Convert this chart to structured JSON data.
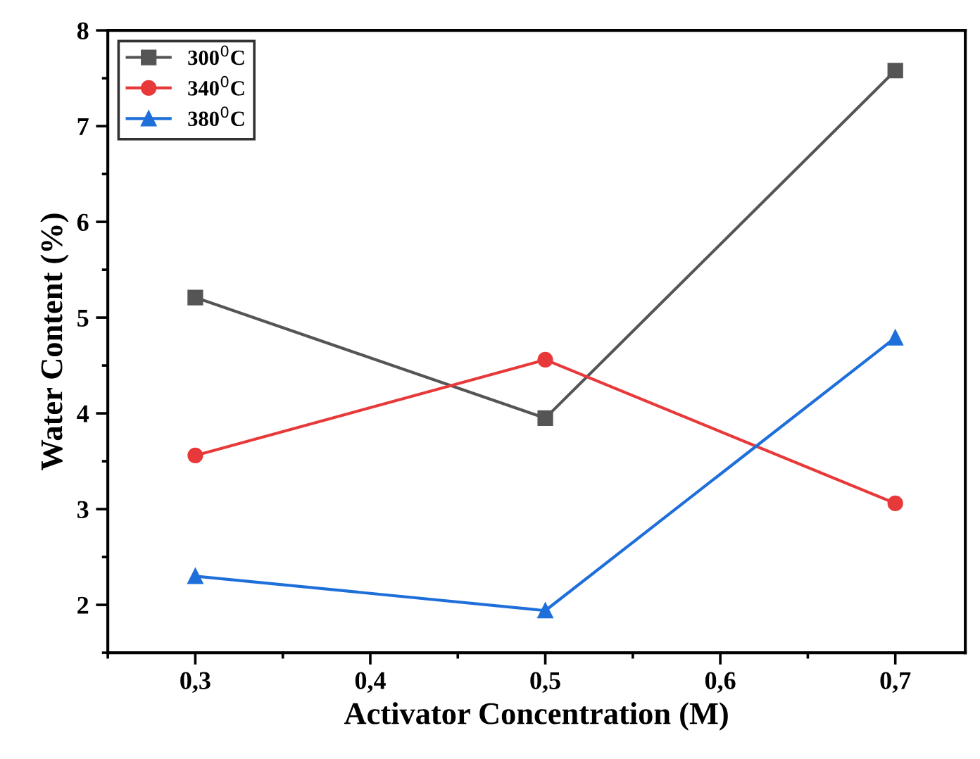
{
  "chart_data": {
    "type": "line",
    "xlabel": "Activator Concentration (M)",
    "ylabel": "Water Content (%)",
    "x": [
      0.3,
      0.5,
      0.7
    ],
    "series": [
      {
        "name": "300$^{0}$C",
        "color": "#555555",
        "marker": "square",
        "values": [
          5.21,
          3.95,
          7.58
        ]
      },
      {
        "name": "340$^{0}$C",
        "color": "#e8393a",
        "marker": "circle",
        "values": [
          3.56,
          4.56,
          3.06
        ]
      },
      {
        "name": "380$^{0}$C",
        "color": "#1e6fd9",
        "marker": "triangle",
        "values": [
          2.3,
          1.94,
          4.79
        ]
      }
    ],
    "xlim": [
      0.25,
      0.74
    ],
    "ylim": [
      1.5,
      8
    ],
    "xticks": [
      {
        "value": 0.3,
        "label": "0,3"
      },
      {
        "value": 0.4,
        "label": "0,4"
      },
      {
        "value": 0.5,
        "label": "0,5"
      },
      {
        "value": 0.6,
        "label": "0,6"
      },
      {
        "value": 0.7,
        "label": "0,7"
      }
    ],
    "yticks": [
      2,
      3,
      4,
      5,
      6,
      7,
      8
    ],
    "legend": "top left",
    "grid": false,
    "line_style": "solid"
  }
}
